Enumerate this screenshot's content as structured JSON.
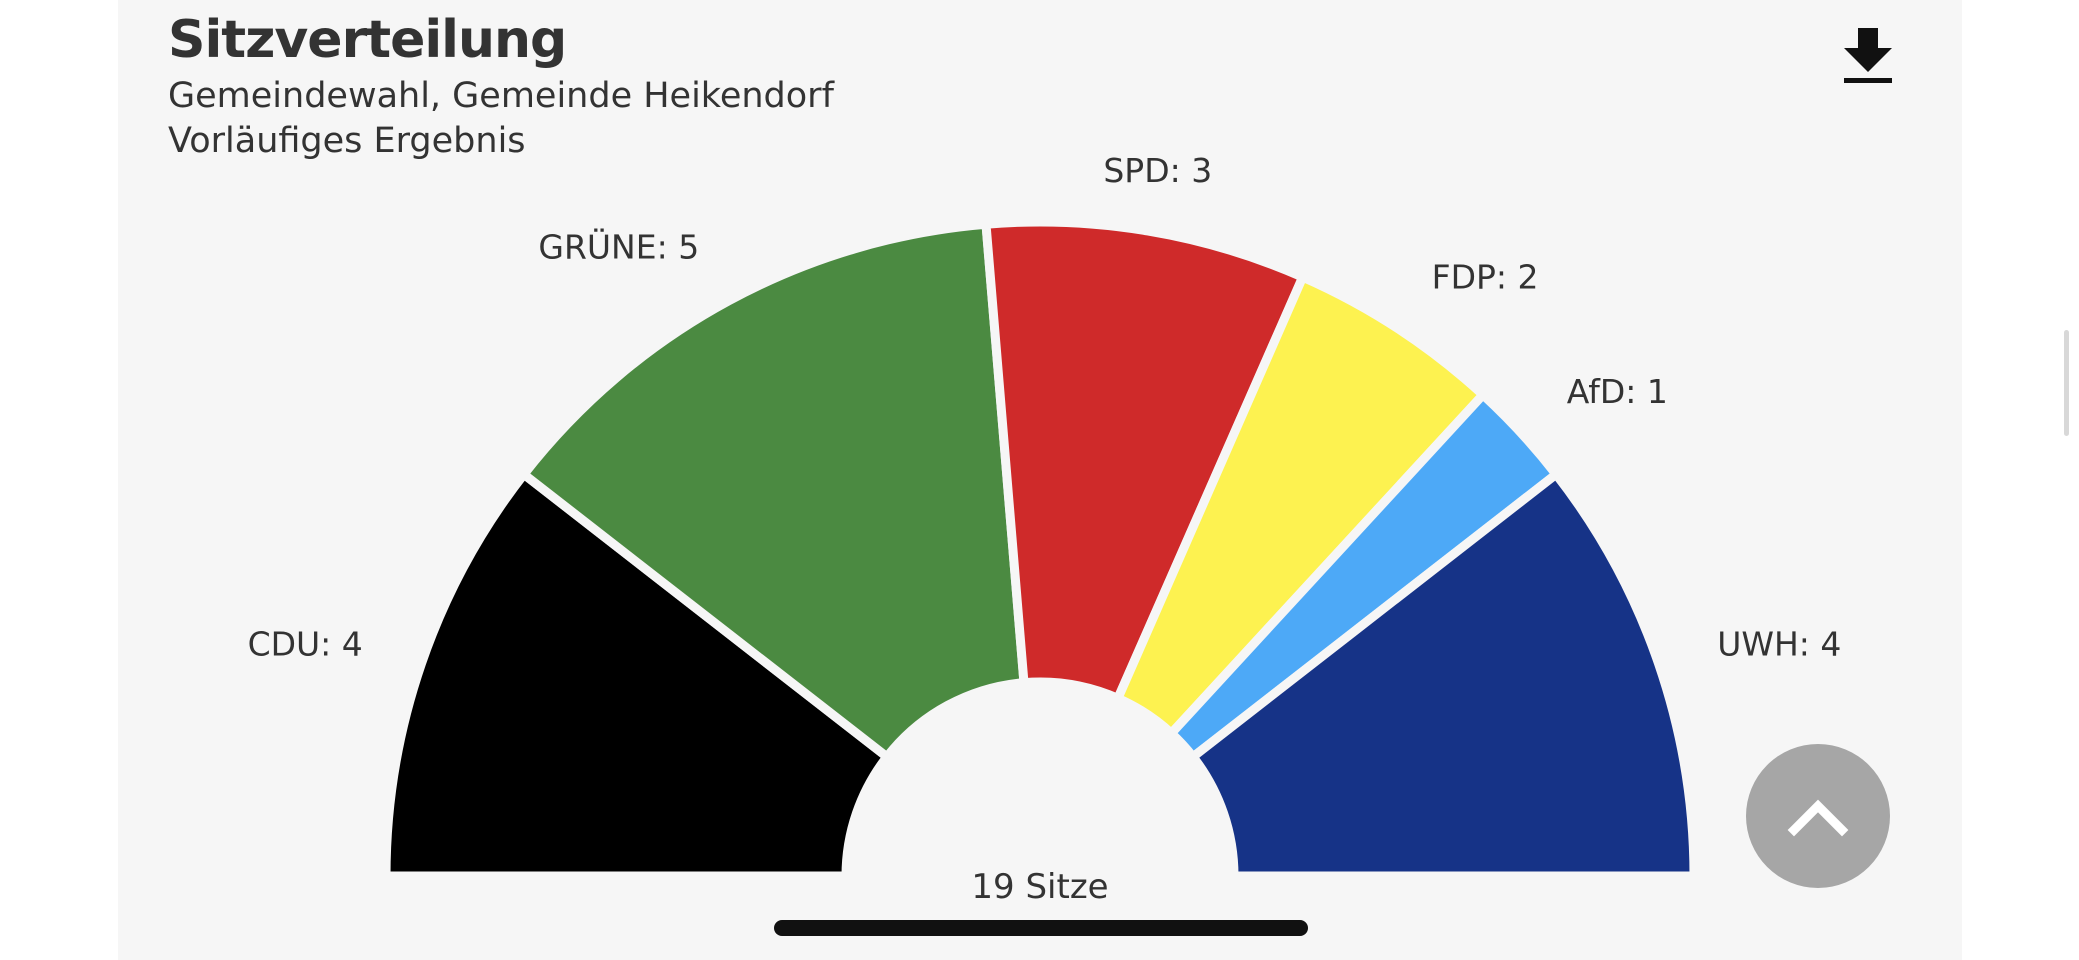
{
  "header": {
    "title": "Sitzverteilung",
    "subtitle_1": "Gemeindewahl, Gemeinde Heikendorf",
    "subtitle_2": "Vorläufiges Ergebnis"
  },
  "icons": {
    "download": "download-icon",
    "scroll_top": "chevron-up-icon"
  },
  "chart_data": {
    "type": "pie",
    "variant": "semicircle-parliament",
    "total_label": "19 Sitze",
    "total": 19,
    "segments": [
      {
        "name": "CDU",
        "value": 4,
        "label": "CDU: 4",
        "color": "#000000"
      },
      {
        "name": "GRÜNE",
        "value": 5,
        "label": "GRÜNE: 5",
        "color": "#4b8a41"
      },
      {
        "name": "SPD",
        "value": 3,
        "label": "SPD: 3",
        "color": "#cf2a2a"
      },
      {
        "name": "FDP",
        "value": 2,
        "label": "FDP: 2",
        "color": "#fdf250"
      },
      {
        "name": "AfD",
        "value": 1,
        "label": "AfD: 1",
        "color": "#4da9f7"
      },
      {
        "name": "UWH",
        "value": 4,
        "label": "UWH: 4",
        "color": "#163387"
      }
    ]
  }
}
